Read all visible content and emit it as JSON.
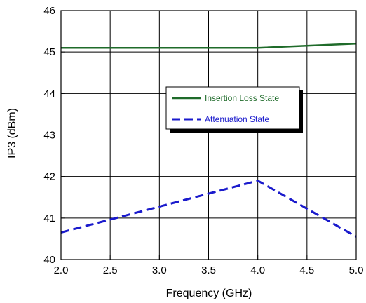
{
  "chart_data": {
    "type": "line",
    "title": "",
    "xlabel": "Frequency (GHz)",
    "ylabel": "IP3 (dBm)",
    "xlim": [
      2.0,
      5.0
    ],
    "ylim": [
      40,
      46
    ],
    "xticks": [
      "2.0",
      "2.5",
      "3.0",
      "3.5",
      "4.0",
      "4.5",
      "5.0"
    ],
    "yticks": [
      "40",
      "41",
      "42",
      "43",
      "44",
      "45",
      "46"
    ],
    "grid": true,
    "legend_position": "center",
    "series": [
      {
        "name": "Insertion Loss State",
        "color": "#1f6b2a",
        "style": "solid",
        "x": [
          2.0,
          4.0,
          5.0
        ],
        "y": [
          45.1,
          45.1,
          45.2
        ]
      },
      {
        "name": "Attenuation State",
        "color": "#1a1acc",
        "style": "dashed",
        "x": [
          2.0,
          4.0,
          5.0
        ],
        "y": [
          40.65,
          41.9,
          40.55
        ]
      }
    ]
  }
}
